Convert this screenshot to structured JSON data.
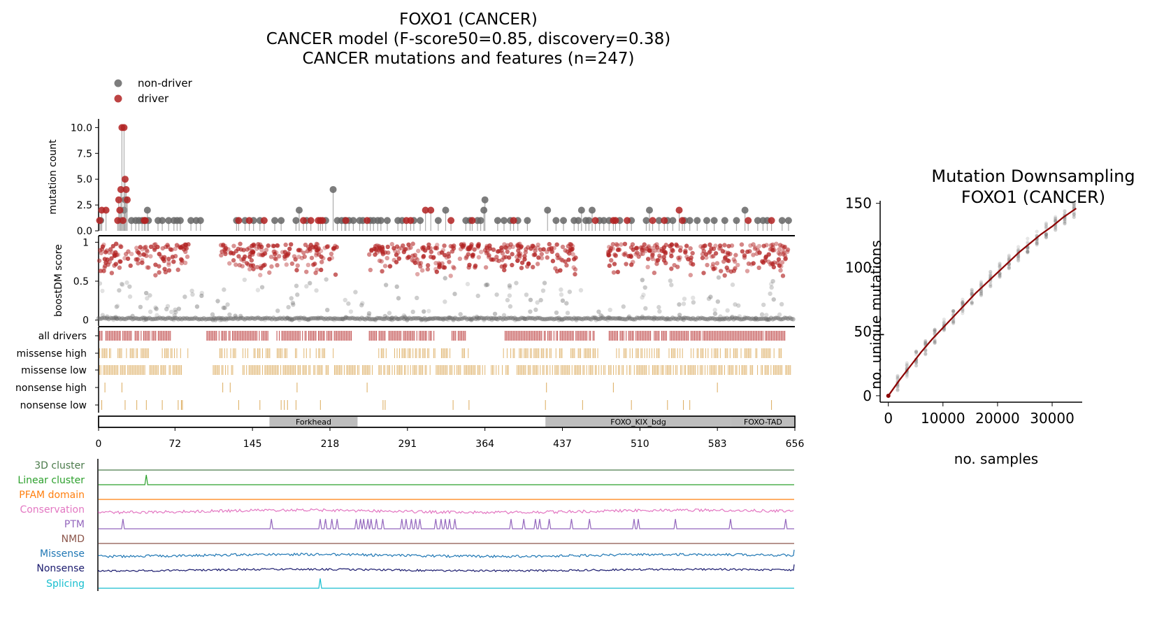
{
  "title": {
    "line1": "FOXO1 (CANCER)",
    "line2": "CANCER model (F-score50=0.85, discovery=0.38)",
    "line3": "CANCER mutations and features (n=247)"
  },
  "legend": {
    "items": [
      {
        "label": "non-driver",
        "color": "#666666"
      },
      {
        "label": "driver",
        "color": "#b22222"
      }
    ]
  },
  "colors": {
    "driver": "#b22222",
    "non_driver": "#666666",
    "csq": "#d9a552",
    "domain_fill": "#bdbdbd",
    "curve": "#8b0000"
  },
  "chart_data": [
    {
      "type": "scatter",
      "subtype": "lollipop",
      "name": "mutation-lollipop",
      "ylabel": "mutation count",
      "ylim": [
        0,
        10.5
      ],
      "yticks": [
        "0.0",
        "2.5",
        "5.0",
        "7.5",
        "10.0"
      ],
      "ytick_values": [
        0,
        2.5,
        5,
        7.5,
        10
      ],
      "xlim": [
        0,
        656
      ],
      "drivers": [
        {
          "x": 1,
          "y": 1
        },
        {
          "x": 3,
          "y": 2
        },
        {
          "x": 7,
          "y": 2
        },
        {
          "x": 18,
          "y": 1
        },
        {
          "x": 19,
          "y": 3
        },
        {
          "x": 20,
          "y": 2
        },
        {
          "x": 21,
          "y": 4
        },
        {
          "x": 22,
          "y": 10
        },
        {
          "x": 23,
          "y": 1
        },
        {
          "x": 24,
          "y": 10
        },
        {
          "x": 25,
          "y": 5
        },
        {
          "x": 26,
          "y": 4
        },
        {
          "x": 27,
          "y": 3
        },
        {
          "x": 43,
          "y": 1
        },
        {
          "x": 44,
          "y": 1
        },
        {
          "x": 132,
          "y": 1
        },
        {
          "x": 142,
          "y": 1
        },
        {
          "x": 156,
          "y": 1
        },
        {
          "x": 193,
          "y": 1
        },
        {
          "x": 200,
          "y": 1
        },
        {
          "x": 207,
          "y": 1
        },
        {
          "x": 209,
          "y": 1
        },
        {
          "x": 211,
          "y": 1
        },
        {
          "x": 233,
          "y": 1
        },
        {
          "x": 253,
          "y": 1
        },
        {
          "x": 290,
          "y": 1
        },
        {
          "x": 294,
          "y": 1
        },
        {
          "x": 308,
          "y": 2
        },
        {
          "x": 313,
          "y": 2
        },
        {
          "x": 332,
          "y": 1
        },
        {
          "x": 352,
          "y": 1
        },
        {
          "x": 391,
          "y": 1
        },
        {
          "x": 468,
          "y": 1
        },
        {
          "x": 485,
          "y": 1
        },
        {
          "x": 487,
          "y": 1
        },
        {
          "x": 498,
          "y": 1
        },
        {
          "x": 522,
          "y": 1
        },
        {
          "x": 533,
          "y": 1
        },
        {
          "x": 547,
          "y": 2
        },
        {
          "x": 550,
          "y": 1
        },
        {
          "x": 612,
          "y": 1
        },
        {
          "x": 634,
          "y": 1
        }
      ],
      "non_drivers": [
        {
          "x": 2,
          "y": 1
        },
        {
          "x": 21,
          "y": 1
        },
        {
          "x": 24,
          "y": 2
        },
        {
          "x": 25,
          "y": 3
        },
        {
          "x": 31,
          "y": 1
        },
        {
          "x": 35,
          "y": 1
        },
        {
          "x": 38,
          "y": 1
        },
        {
          "x": 41,
          "y": 1
        },
        {
          "x": 46,
          "y": 2
        },
        {
          "x": 47,
          "y": 1
        },
        {
          "x": 56,
          "y": 1
        },
        {
          "x": 60,
          "y": 1
        },
        {
          "x": 66,
          "y": 1
        },
        {
          "x": 71,
          "y": 1
        },
        {
          "x": 74,
          "y": 1
        },
        {
          "x": 77,
          "y": 1
        },
        {
          "x": 87,
          "y": 1
        },
        {
          "x": 92,
          "y": 1
        },
        {
          "x": 96,
          "y": 1
        },
        {
          "x": 130,
          "y": 1
        },
        {
          "x": 138,
          "y": 1
        },
        {
          "x": 146,
          "y": 1
        },
        {
          "x": 152,
          "y": 1
        },
        {
          "x": 166,
          "y": 1
        },
        {
          "x": 172,
          "y": 1
        },
        {
          "x": 186,
          "y": 1
        },
        {
          "x": 189,
          "y": 2
        },
        {
          "x": 196,
          "y": 1
        },
        {
          "x": 214,
          "y": 1
        },
        {
          "x": 221,
          "y": 4
        },
        {
          "x": 225,
          "y": 1
        },
        {
          "x": 229,
          "y": 1
        },
        {
          "x": 232,
          "y": 1
        },
        {
          "x": 236,
          "y": 1
        },
        {
          "x": 240,
          "y": 1
        },
        {
          "x": 246,
          "y": 1
        },
        {
          "x": 249,
          "y": 1
        },
        {
          "x": 256,
          "y": 1
        },
        {
          "x": 259,
          "y": 1
        },
        {
          "x": 263,
          "y": 1
        },
        {
          "x": 266,
          "y": 1
        },
        {
          "x": 272,
          "y": 1
        },
        {
          "x": 282,
          "y": 1
        },
        {
          "x": 286,
          "y": 1
        },
        {
          "x": 297,
          "y": 1
        },
        {
          "x": 303,
          "y": 1
        },
        {
          "x": 320,
          "y": 1
        },
        {
          "x": 327,
          "y": 2
        },
        {
          "x": 346,
          "y": 1
        },
        {
          "x": 350,
          "y": 1
        },
        {
          "x": 357,
          "y": 1
        },
        {
          "x": 360,
          "y": 1
        },
        {
          "x": 363,
          "y": 2
        },
        {
          "x": 364,
          "y": 3
        },
        {
          "x": 376,
          "y": 1
        },
        {
          "x": 382,
          "y": 1
        },
        {
          "x": 388,
          "y": 1
        },
        {
          "x": 395,
          "y": 1
        },
        {
          "x": 404,
          "y": 1
        },
        {
          "x": 423,
          "y": 2
        },
        {
          "x": 431,
          "y": 1
        },
        {
          "x": 438,
          "y": 1
        },
        {
          "x": 448,
          "y": 1
        },
        {
          "x": 452,
          "y": 1
        },
        {
          "x": 455,
          "y": 2
        },
        {
          "x": 459,
          "y": 1
        },
        {
          "x": 462,
          "y": 1
        },
        {
          "x": 465,
          "y": 2
        },
        {
          "x": 472,
          "y": 1
        },
        {
          "x": 476,
          "y": 1
        },
        {
          "x": 481,
          "y": 1
        },
        {
          "x": 491,
          "y": 1
        },
        {
          "x": 502,
          "y": 1
        },
        {
          "x": 516,
          "y": 1
        },
        {
          "x": 519,
          "y": 2
        },
        {
          "x": 528,
          "y": 1
        },
        {
          "x": 536,
          "y": 1
        },
        {
          "x": 541,
          "y": 1
        },
        {
          "x": 552,
          "y": 1
        },
        {
          "x": 557,
          "y": 1
        },
        {
          "x": 564,
          "y": 1
        },
        {
          "x": 573,
          "y": 1
        },
        {
          "x": 580,
          "y": 1
        },
        {
          "x": 590,
          "y": 1
        },
        {
          "x": 601,
          "y": 1
        },
        {
          "x": 609,
          "y": 2
        },
        {
          "x": 621,
          "y": 1
        },
        {
          "x": 626,
          "y": 1
        },
        {
          "x": 630,
          "y": 1
        },
        {
          "x": 644,
          "y": 1
        },
        {
          "x": 650,
          "y": 1
        }
      ]
    },
    {
      "type": "scatter",
      "name": "boostdm-score",
      "ylabel": "boostDM score",
      "ylim": [
        -0.03,
        1.03
      ],
      "yticks": [
        "0",
        "0.5",
        "1"
      ],
      "ytick_values": [
        0,
        0.5,
        1
      ],
      "xlim": [
        0,
        656
      ],
      "driver_regions": [
        [
          0,
          85
        ],
        [
          115,
          225
        ],
        [
          255,
          335
        ],
        [
          340,
          450
        ],
        [
          480,
          560
        ],
        [
          565,
          650
        ]
      ],
      "note_points": "Dense scatter of per-position predicted scores: red (driver, score > 0.5) and grey (non-driver) points."
    },
    {
      "type": "table",
      "name": "consequence-tracks",
      "rows": [
        {
          "label": "all drivers",
          "color": "#b22222",
          "regions": [
            [
              1,
              68
            ],
            [
              102,
              160
            ],
            [
              168,
              239
            ],
            [
              255,
              317
            ],
            [
              333,
              346
            ],
            [
              383,
              467
            ],
            [
              481,
              647
            ]
          ],
          "density": 0.9
        },
        {
          "label": "missense high",
          "color": "#d9a552",
          "regions": [
            [
              1,
              48
            ],
            [
              60,
              85
            ],
            [
              113,
              130
            ],
            [
              136,
              222
            ],
            [
              264,
              318
            ],
            [
              323,
              350
            ],
            [
              378,
              437
            ],
            [
              445,
              471
            ],
            [
              488,
              644
            ]
          ],
          "density": 0.55
        },
        {
          "label": "missense low",
          "color": "#d9a552",
          "regions": [
            [
              1,
              82
            ],
            [
              108,
              130
            ],
            [
              136,
              259
            ],
            [
              264,
              365
            ],
            [
              370,
              388
            ],
            [
              392,
              652
            ]
          ],
          "density": 0.72
        },
        {
          "label": "nonsense high",
          "color": "#d9a552",
          "points": [
            6,
            22,
            117,
            124,
            187,
            253,
            422,
            485,
            583
          ]
        },
        {
          "label": "nonsense low",
          "color": "#d9a552",
          "points": [
            3,
            25,
            36,
            45,
            60,
            75,
            78,
            79,
            132,
            152,
            172,
            175,
            178,
            186,
            209,
            268,
            270,
            334,
            349,
            421,
            456,
            502,
            536,
            551,
            557,
            634
          ]
        }
      ]
    },
    {
      "type": "bar",
      "name": "domain-track",
      "xlim": [
        0,
        656
      ],
      "xticks": [
        "0",
        "72",
        "145",
        "218",
        "291",
        "364",
        "437",
        "510",
        "583",
        "656"
      ],
      "xtick_values": [
        0,
        72,
        145,
        218,
        291,
        364,
        437,
        510,
        583,
        656
      ],
      "domains": [
        {
          "name": "Forkhead",
          "start": 161,
          "end": 244
        },
        {
          "name": "FOXO_KIX_bdg",
          "start": 421,
          "end": 596
        },
        {
          "name": "FOXO-TAD",
          "start": 596,
          "end": 656
        }
      ]
    },
    {
      "type": "line",
      "name": "feature-tracks",
      "tracks": [
        {
          "label": "3D cluster",
          "color": "#4a7a4a",
          "kind": "flat"
        },
        {
          "label": "Linear cluster",
          "color": "#2ca02c",
          "kind": "peaks",
          "peaks": [
            45
          ]
        },
        {
          "label": "PFAM domain",
          "color": "#ff7f0e",
          "kind": "flat"
        },
        {
          "label": "Conservation",
          "color": "#e377c2",
          "kind": "noise",
          "amplitude": 0.45
        },
        {
          "label": "PTM",
          "color": "#9467bd",
          "kind": "peaks",
          "peaks": [
            23,
            163,
            209,
            214,
            220,
            225,
            243,
            247,
            250,
            254,
            257,
            262,
            268,
            286,
            290,
            295,
            299,
            303,
            318,
            323,
            327,
            331,
            336,
            389,
            401,
            412,
            416,
            425,
            446,
            463,
            505,
            509,
            544,
            596,
            648
          ]
        },
        {
          "label": "NMD",
          "color": "#8c564b",
          "kind": "flat"
        },
        {
          "label": "Missense",
          "color": "#1f77b4",
          "kind": "noise",
          "amplitude": 0.4
        },
        {
          "label": "Nonsense",
          "color": "#1a1a6e",
          "kind": "noise",
          "amplitude": 0.3
        },
        {
          "label": "Splicing",
          "color": "#17becf",
          "kind": "peaks",
          "peaks": [
            209
          ]
        }
      ]
    },
    {
      "type": "scatter",
      "name": "mutation-downsampling",
      "title": "Mutation Downsampling\nFOXO1 (CANCER)",
      "title_line1": "Mutation Downsampling",
      "title_line2": "FOXO1 (CANCER)",
      "xlabel": "no. samples",
      "ylabel": "no. unique mutations",
      "xlim": [
        -1500,
        35500
      ],
      "ylim": [
        -5,
        152
      ],
      "xticks": [
        "0",
        "10000",
        "20000",
        "30000"
      ],
      "xtick_values": [
        0,
        10000,
        20000,
        30000
      ],
      "yticks": [
        "0",
        "50",
        "100",
        "150"
      ],
      "ytick_values": [
        0,
        50,
        100,
        150
      ],
      "curve": {
        "x": [
          0,
          2000,
          4000,
          6000,
          8000,
          10000,
          12000,
          14000,
          16000,
          18000,
          20000,
          22000,
          24000,
          26000,
          28000,
          30000,
          32000,
          34400
        ],
        "y": [
          0,
          12,
          23,
          34,
          44,
          53,
          62,
          71,
          80,
          88,
          96,
          104,
          112,
          119,
          126,
          132,
          139,
          146
        ]
      }
    }
  ]
}
